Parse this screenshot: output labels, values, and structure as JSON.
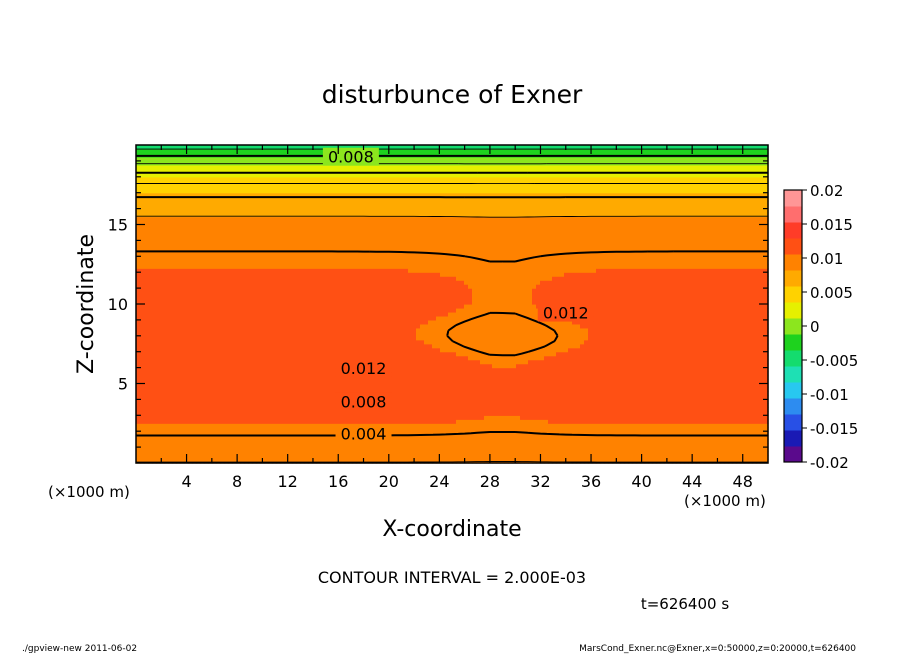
{
  "chart_data": {
    "type": "heatmap",
    "title": "disturbunce of Exner",
    "xlabel": "X-coordinate",
    "ylabel": "Z-coordinate",
    "x_unit": "(×1000 m)",
    "x_unit_left": "(×1000 m)",
    "xlim": [
      0,
      50
    ],
    "ylim": [
      0,
      20
    ],
    "x_ticks": [
      4,
      8,
      12,
      16,
      20,
      24,
      28,
      32,
      36,
      40,
      44,
      48
    ],
    "y_ticks": [
      5,
      10,
      15
    ],
    "colorbar": {
      "labels": [
        "0.02",
        "0.015",
        "0.01",
        "0.005",
        "0",
        "-0.005",
        "-0.01",
        "-0.015",
        "-0.02"
      ],
      "levels": [
        -0.02,
        -0.0175,
        -0.015,
        -0.0125,
        -0.01,
        -0.0075,
        -0.005,
        -0.0025,
        0,
        0.0025,
        0.005,
        0.0075,
        0.01,
        0.0125,
        0.015,
        0.0175,
        0.02
      ],
      "colors": [
        "#5a0a8c",
        "#1a1ab4",
        "#2850e6",
        "#2d8cf0",
        "#28c8f0",
        "#1ee0b4",
        "#14dc6e",
        "#1ed21e",
        "#8ce61e",
        "#e6f000",
        "#ffd200",
        "#ffaa00",
        "#ff8200",
        "#ff5014",
        "#ff3c28",
        "#ff6e6e",
        "#ff9696"
      ]
    },
    "contour_labels": [
      {
        "text": "0.008",
        "x": 17,
        "z": 19.2
      },
      {
        "text": "0.012",
        "x": 34,
        "z": 9.4
      },
      {
        "text": "0.012",
        "x": 18,
        "z": 5.9
      },
      {
        "text": "0.008",
        "x": 18,
        "z": 3.8
      },
      {
        "text": "0.004",
        "x": 18,
        "z": 1.8
      }
    ],
    "contour_interval_text": "CONTOUR INTERVAL = 2.000E-03",
    "time_text": "t=626400 s"
  },
  "footer": {
    "left": "./gpview-new  2011-06-02",
    "right": "MarsCond_Exner.nc@Exner,x=0:50000,z=0:20000,t=626400"
  }
}
